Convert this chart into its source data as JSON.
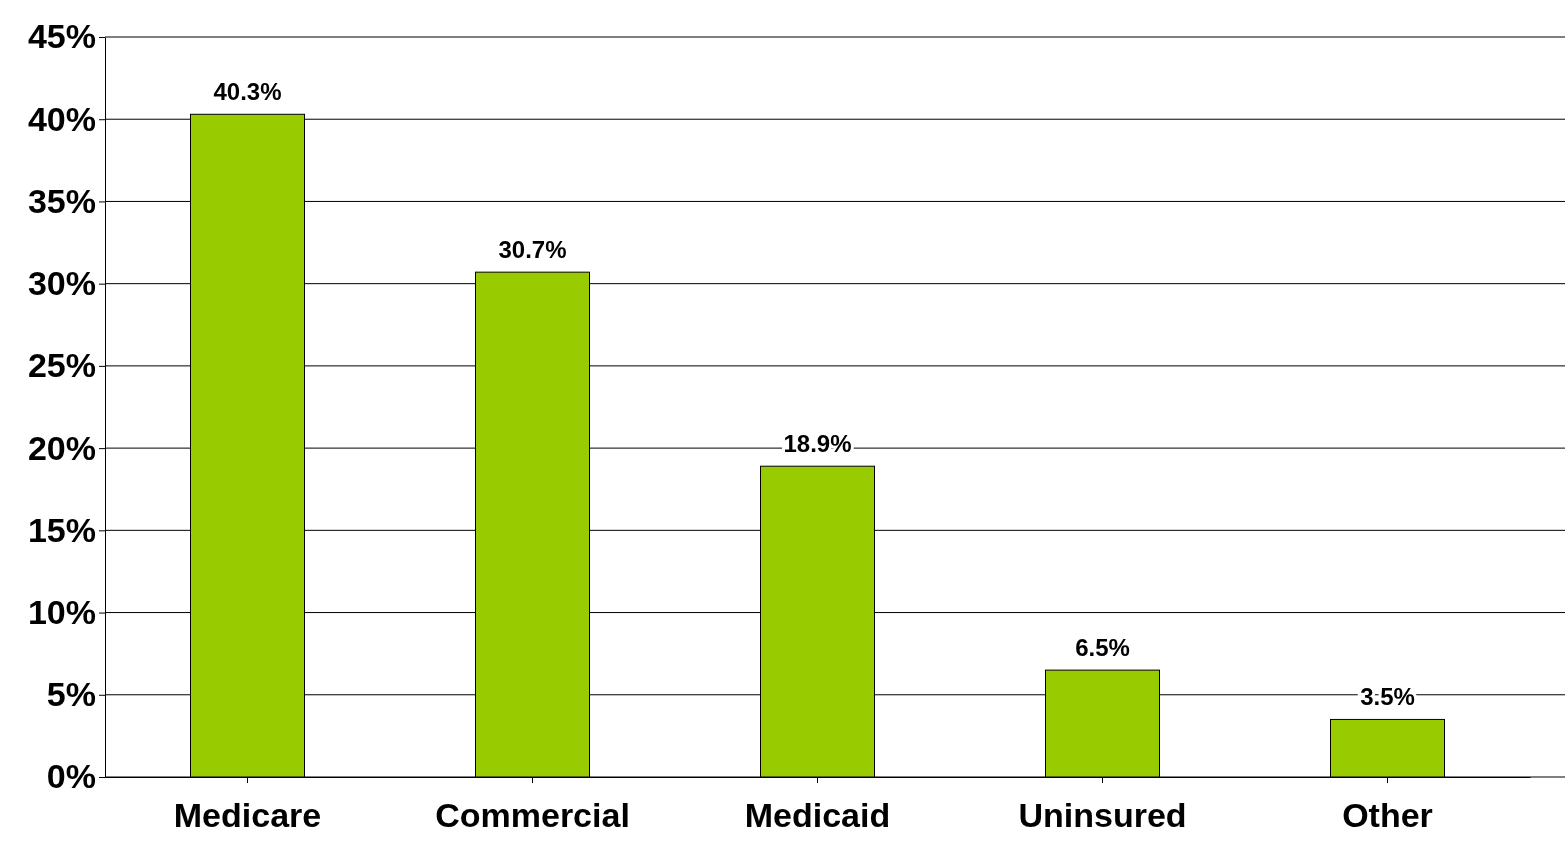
{
  "chart_data": {
    "type": "bar",
    "categories": [
      "Medicare",
      "Commercial",
      "Medicaid",
      "Uninsured",
      "Other"
    ],
    "values": [
      40.3,
      30.7,
      18.9,
      6.5,
      3.5
    ],
    "value_labels": [
      "40.3%",
      "30.7%",
      "18.9%",
      "6.5%",
      "3.5%"
    ],
    "color": "#99cc00",
    "ylim": [
      0,
      45
    ],
    "yticks": [
      {
        "value": 0,
        "label": "0%"
      },
      {
        "value": 5,
        "label": "5%"
      },
      {
        "value": 10,
        "label": "10%"
      },
      {
        "value": 15,
        "label": "15%"
      },
      {
        "value": 20,
        "label": "20%"
      },
      {
        "value": 25,
        "label": "25%"
      },
      {
        "value": 30,
        "label": "30%"
      },
      {
        "value": 35,
        "label": "35%"
      },
      {
        "value": 40,
        "label": "40%"
      },
      {
        "value": 45,
        "label": "45%"
      }
    ],
    "grid": "y"
  }
}
